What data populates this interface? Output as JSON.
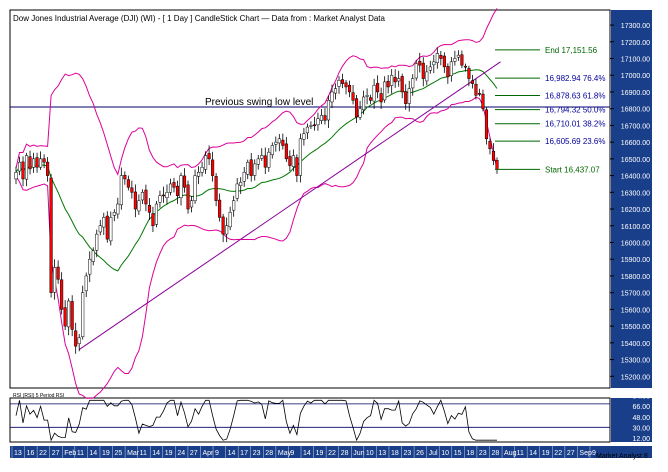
{
  "header": {
    "title": "Dow Jones Industrial Average (DJI) (WI) -  [ 1 Day ] CandleStick Chart — Data from : Market Analyst Data"
  },
  "footer": {
    "tag": "Market Analyst 8"
  },
  "chart_data": {
    "type": "candlestick",
    "price_axis": {
      "ylim": [
        15130,
        17390
      ],
      "ticks": [
        15200,
        15300,
        15400,
        15500,
        15600,
        15700,
        15800,
        15900,
        16000,
        16100,
        16200,
        16300,
        16400,
        16500,
        16600,
        16700,
        16800,
        16900,
        17000,
        17100,
        17200,
        17300
      ],
      "tick_labels": [
        "15200.00",
        "15300.00",
        "15400.00",
        "15500.00",
        "15600.00",
        "15700.00",
        "15800.00",
        "15900.00",
        "16000.00",
        "16100.00",
        "16200.00",
        "16300.00",
        "16400.00",
        "16500.00",
        "16600.00",
        "16700.00",
        "16800.00",
        "16900.00",
        "17000.00",
        "17100.00",
        "17200.00",
        "17300.00"
      ]
    },
    "date_axis": {
      "labels": [
        "13",
        "16",
        "22",
        "27",
        "Feb",
        "11",
        "14",
        "19",
        "25",
        "Mar",
        "11",
        "14",
        "19",
        "24",
        "27",
        "Apr",
        "9",
        "14",
        "17",
        "23",
        "28",
        "May",
        "9",
        "14",
        "19",
        "22",
        "28",
        "Jun",
        "10",
        "13",
        "18",
        "23",
        "26",
        "Jul",
        "10",
        "15",
        "18",
        "23",
        "28",
        "Aug",
        "11",
        "14",
        "19",
        "22",
        "27",
        "Sep",
        "9"
      ]
    },
    "closes": [
      16420,
      16480,
      16380,
      16520,
      16440,
      16500,
      16450,
      16500,
      16480,
      16400,
      15700,
      15850,
      15780,
      15600,
      15500,
      15650,
      15480,
      15380,
      15430,
      15700,
      15800,
      15900,
      15950,
      16050,
      16100,
      16150,
      16020,
      16150,
      16180,
      16230,
      16400,
      16380,
      16330,
      16300,
      16200,
      16250,
      16300,
      16230,
      16180,
      16100,
      16230,
      16280,
      16280,
      16300,
      16350,
      16330,
      16280,
      16400,
      16330,
      16200,
      16250,
      16400,
      16420,
      16450,
      16520,
      16500,
      16400,
      16250,
      16150,
      16050,
      16100,
      16180,
      16250,
      16350,
      16360,
      16420,
      16480,
      16400,
      16470,
      16500,
      16520,
      16450,
      16540,
      16580,
      16600,
      16620,
      16580,
      16500,
      16460,
      16520,
      16400,
      16620,
      16650,
      16690,
      16700,
      16700,
      16740,
      16760,
      16730,
      16850,
      16900,
      16920,
      16970,
      16950,
      16930,
      16900,
      16850,
      16750,
      16800,
      16870,
      16880,
      16850,
      16940,
      16900,
      16840,
      16960,
      16930,
      17000,
      16960,
      16980,
      16900,
      16830,
      16920,
      16980,
      17070,
      17060,
      16980,
      17020,
      17050,
      17080,
      17130,
      17100,
      17050,
      16990,
      17080,
      17100,
      17120,
      17060,
      17050,
      16980,
      16950,
      16880,
      16890,
      16800,
      16620,
      16560,
      16490,
      16437
    ],
    "fibonacci_levels": [
      {
        "label": "End 17,151.56",
        "value": 17151.56
      },
      {
        "label": "16,982.94 76.4%",
        "value": 16982.94
      },
      {
        "label": "16,878.63 61.8%",
        "value": 16878.63
      },
      {
        "label": "16,794.32 50.0%",
        "value": 16794.32
      },
      {
        "label": "16,710.01 38.2%",
        "value": 16710.01
      },
      {
        "label": "16,605.69 23.6%",
        "value": 16605.69
      },
      {
        "label": "Start 16,437.07",
        "value": 16437.07
      }
    ],
    "annotations": {
      "swing_low_label": "Previous swing low level",
      "swing_low_value": 16810
    },
    "trendline": {
      "from_index": 18,
      "from_value": 15360,
      "to_index": 138,
      "to_value": 17080
    },
    "rsi": {
      "label": "RSI (RSI) 5 Period RSI",
      "ylim": [
        5,
        80
      ],
      "ticks": [
        12,
        30,
        48,
        66,
        84
      ],
      "tick_labels": [
        "12.00",
        "30.00",
        "48.00",
        "66.00",
        "84.00"
      ],
      "reference_lines": [
        30,
        70
      ]
    },
    "colors": {
      "up_candle": "#ffffff",
      "down_candle": "#ff0000",
      "bollinger": "#dd0099",
      "moving_average": "#007700",
      "trendline": "#880099",
      "fib_line": "#006600",
      "fib_label": "#000099",
      "swing_line": "#000066",
      "axis_band": "#1a3f8a"
    }
  }
}
